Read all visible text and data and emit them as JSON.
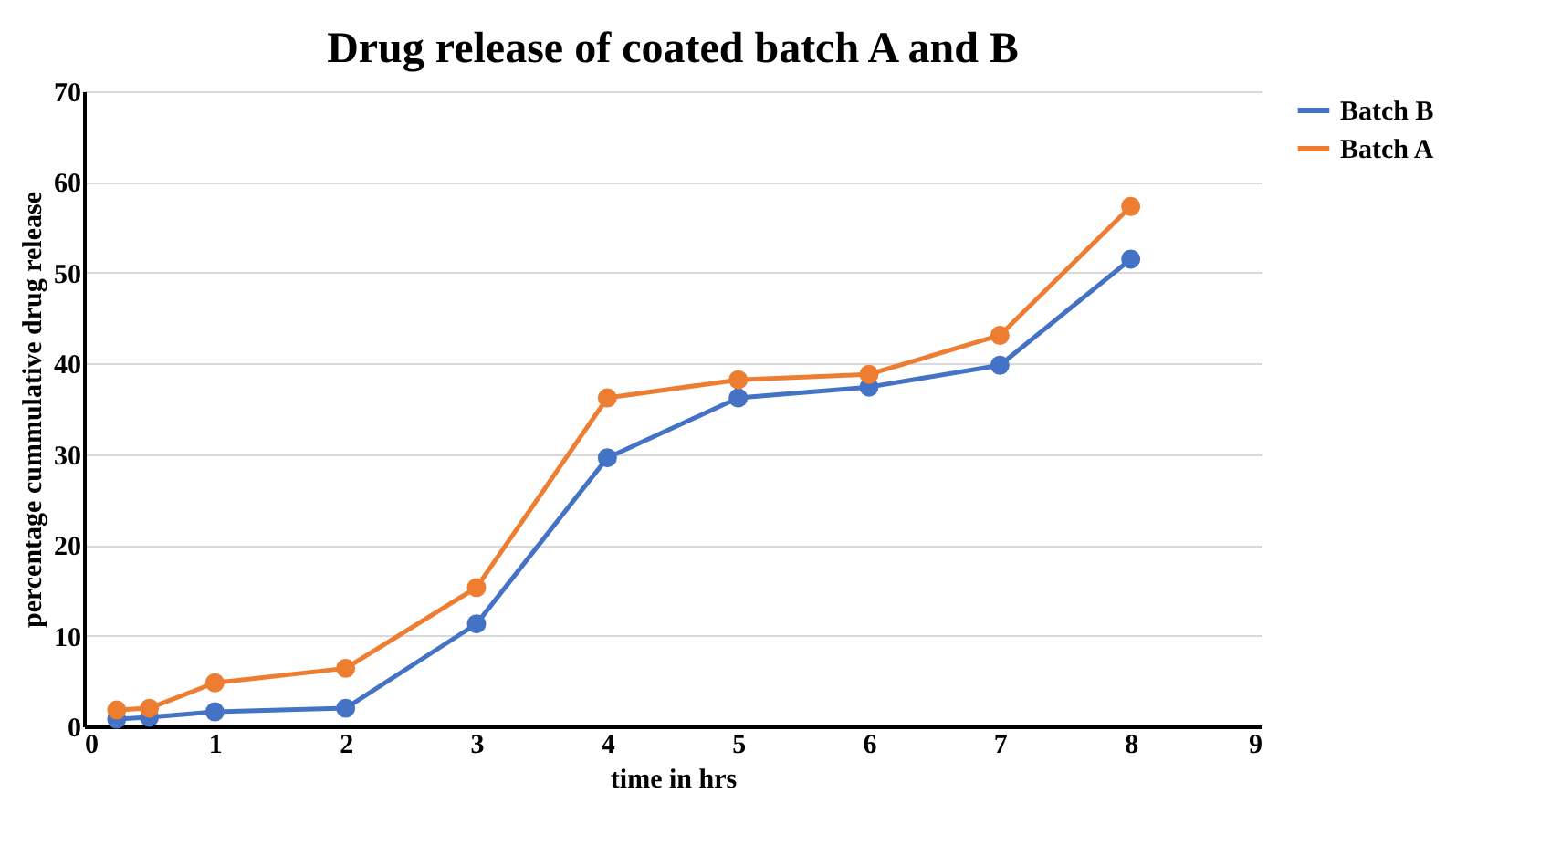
{
  "chart_data": {
    "type": "line",
    "title": "Drug release of coated batch A and B",
    "xlabel": "time in hrs",
    "ylabel": "percentage cummulative drug release",
    "x": [
      0.25,
      0.5,
      1,
      2,
      3,
      4,
      5,
      6,
      7,
      8
    ],
    "series": [
      {
        "name": "Batch B",
        "color": "#4472c4",
        "values": [
          0.8,
          1.0,
          1.6,
          2.0,
          11.3,
          29.6,
          36.2,
          37.4,
          39.8,
          51.5
        ]
      },
      {
        "name": "Batch A",
        "color": "#ed7d31",
        "values": [
          1.8,
          2.0,
          4.8,
          6.4,
          15.3,
          36.2,
          38.2,
          38.8,
          43.1,
          57.3
        ]
      }
    ],
    "xlim": [
      0,
      9
    ],
    "xticks": [
      0,
      1,
      2,
      3,
      4,
      5,
      6,
      7,
      8,
      9
    ],
    "ylim": [
      0,
      70
    ],
    "yticks": [
      0,
      10,
      20,
      30,
      40,
      50,
      60,
      70
    ],
    "grid": "y",
    "legend": "right",
    "marker": "circle",
    "line_style": "solid"
  }
}
